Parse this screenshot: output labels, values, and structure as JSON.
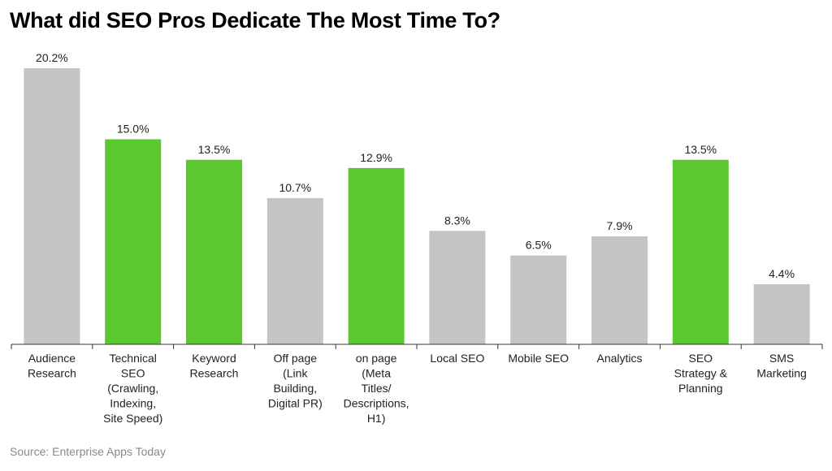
{
  "chart_data": {
    "type": "bar",
    "title": "What did SEO Pros Dedicate The Most Time To?",
    "categories": [
      [
        "Audience",
        "Research"
      ],
      [
        "Technical",
        "SEO",
        "(Crawling,",
        "Indexing,",
        "Site Speed)"
      ],
      [
        "Keyword",
        "Research"
      ],
      [
        "Off page",
        "(Link",
        "Building,",
        "Digital PR)"
      ],
      [
        "on page",
        "(Meta",
        "Titles/",
        "Descriptions,",
        "H1)"
      ],
      [
        "Local SEO"
      ],
      [
        "Mobile SEO"
      ],
      [
        "Analytics"
      ],
      [
        "SEO",
        "Strategy &",
        "Planning"
      ],
      [
        "SMS",
        "Marketing"
      ]
    ],
    "values": [
      20.2,
      15.0,
      13.5,
      10.7,
      12.9,
      8.3,
      6.5,
      7.9,
      13.5,
      4.4
    ],
    "data_labels": [
      "20.2%",
      "15.0%",
      "13.5%",
      "10.7%",
      "12.9%",
      "8.3%",
      "6.5%",
      "7.9%",
      "13.5%",
      "4.4%"
    ],
    "highlighted": [
      false,
      true,
      true,
      false,
      true,
      false,
      false,
      false,
      true,
      false
    ],
    "colors": {
      "default": "#c4c4c4",
      "highlight": "#5ac82e",
      "axis": "#333333",
      "text": "#222222"
    },
    "ylim": [
      0,
      20.2
    ],
    "xlabel": "",
    "ylabel": "",
    "grid": false,
    "legend": "none"
  },
  "source": "Source: Enterprise Apps Today"
}
